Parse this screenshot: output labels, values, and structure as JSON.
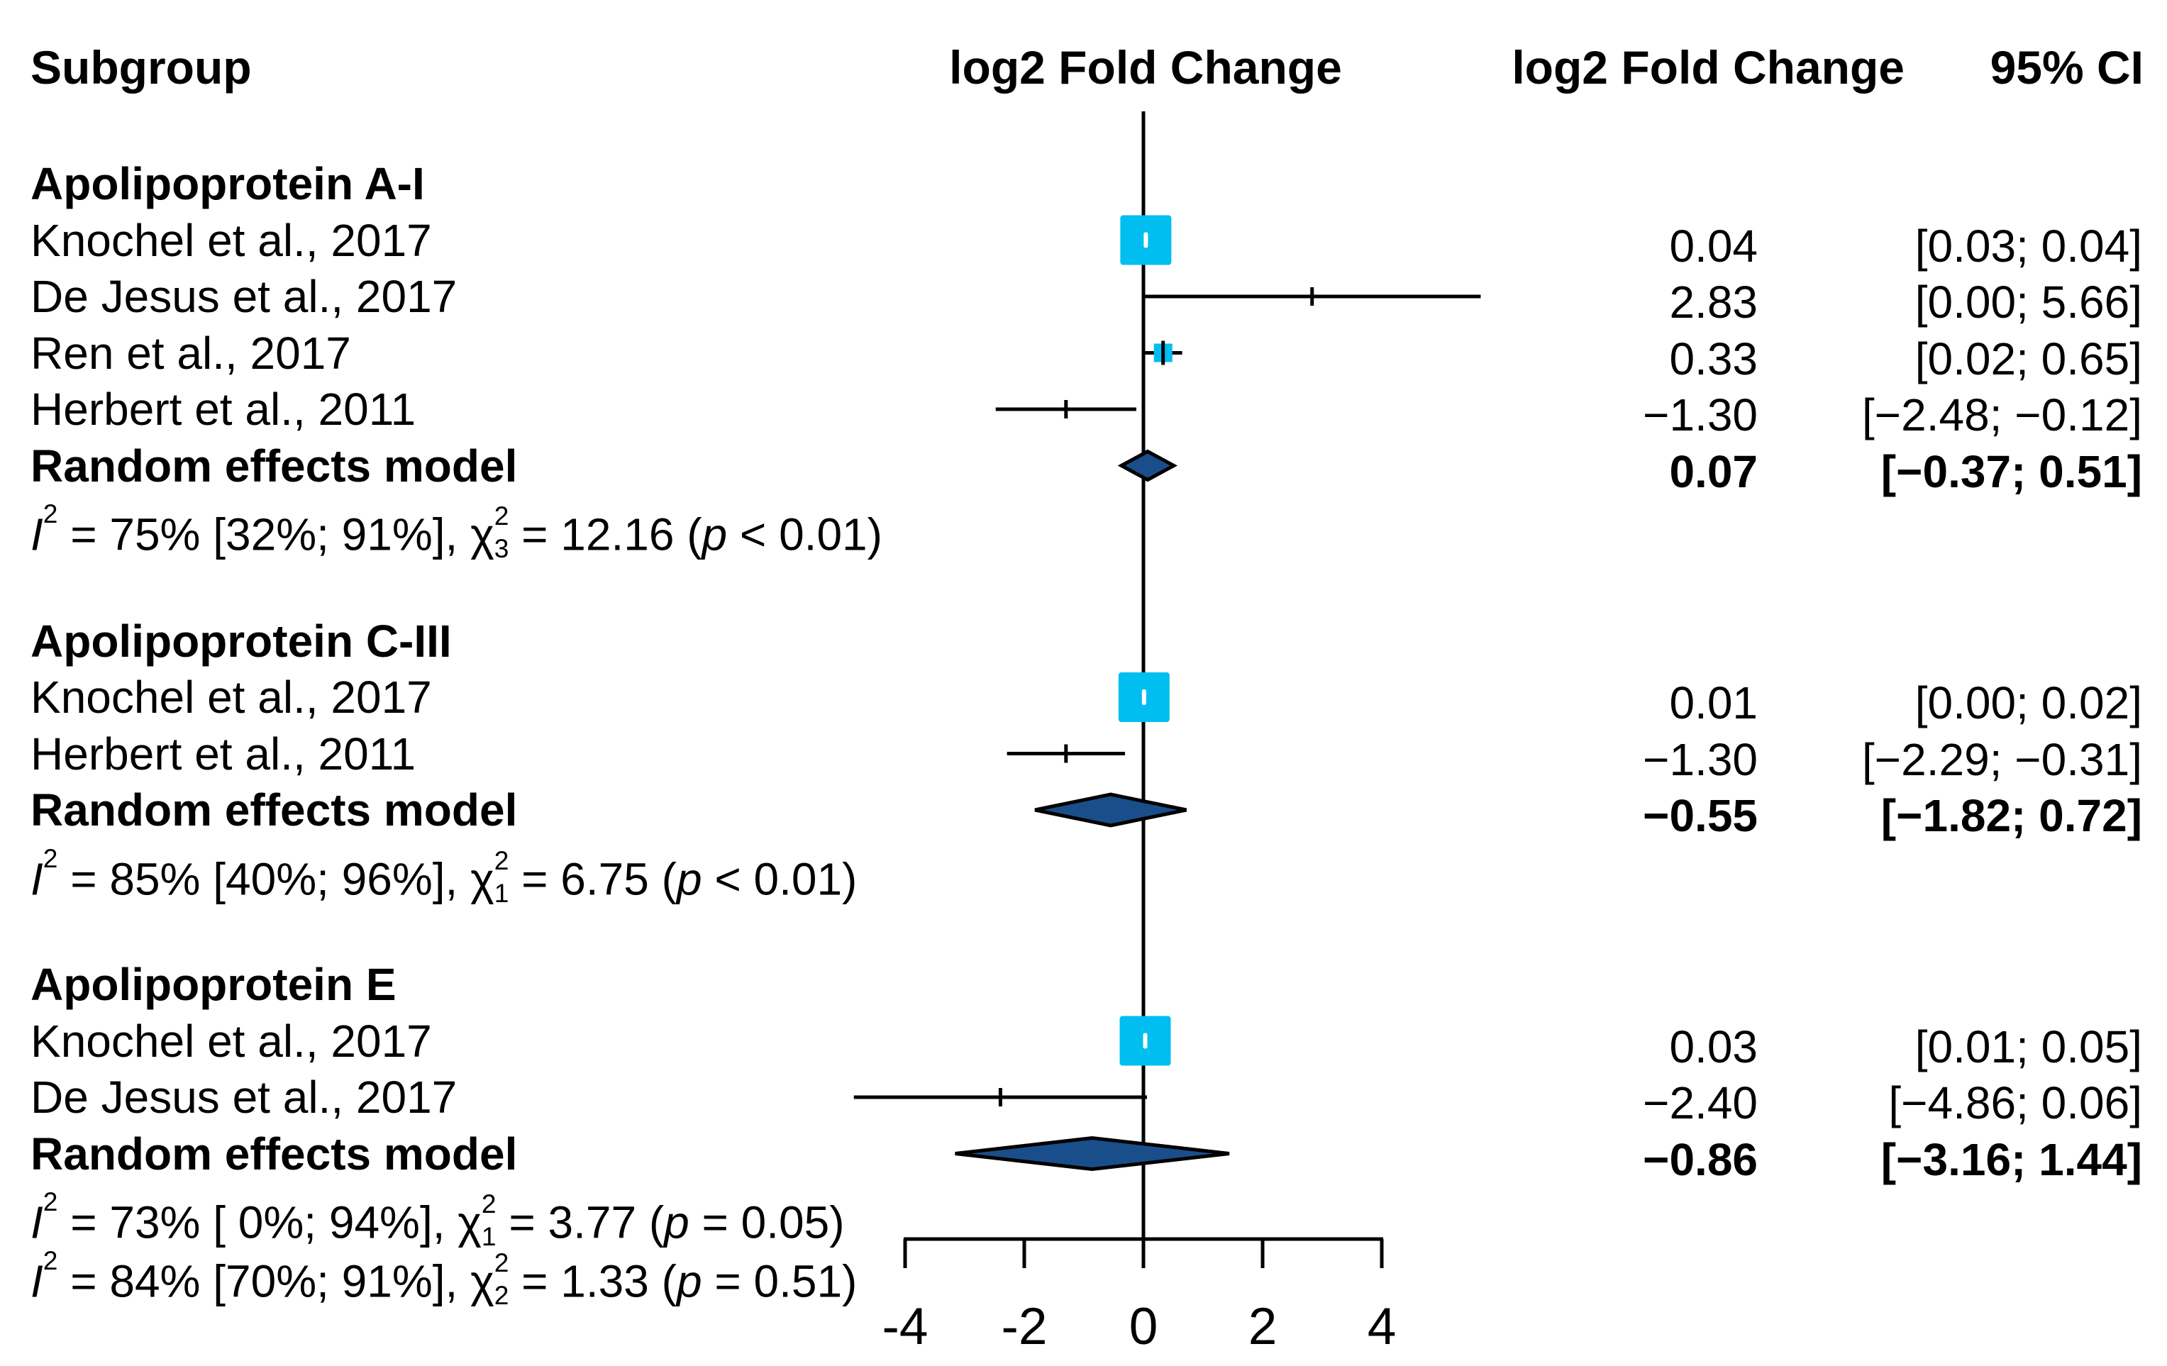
{
  "headers": {
    "subgroup": "Subgroup",
    "plot_title": "log2 Fold Change",
    "value_col": "log2 Fold Change",
    "ci_col": "95% CI"
  },
  "chart_data": {
    "type": "forest",
    "xlabel": "log2 Fold Change",
    "axis_ticks": [
      -4,
      -2,
      0,
      2,
      4
    ],
    "xlim": [
      -4.9,
      5.7
    ],
    "colors": {
      "study_square": "#00BEF0",
      "summary_diamond": "#1A4E8A",
      "line": "#000000"
    },
    "groups": [
      {
        "title": "Apolipoprotein A-I",
        "studies": [
          {
            "label": "Knochel et al., 2017",
            "est": 0.04,
            "lo": 0.03,
            "hi": 0.04,
            "value": "0.04",
            "ci": "[0.03; 0.04]",
            "marker": "big-square"
          },
          {
            "label": "De Jesus et al., 2017",
            "est": 2.83,
            "lo": 0.0,
            "hi": 5.66,
            "value": "2.83",
            "ci": "[0.00; 5.66]",
            "marker": "tick"
          },
          {
            "label": "Ren et al., 2017",
            "est": 0.33,
            "lo": 0.02,
            "hi": 0.65,
            "value": "0.33",
            "ci": "[0.02; 0.65]",
            "marker": "small-square"
          },
          {
            "label": "Herbert et al., 2011",
            "est": -1.3,
            "lo": -2.48,
            "hi": -0.12,
            "value": "−1.30",
            "ci": "[−2.48; −0.12]",
            "marker": "tick"
          }
        ],
        "random": {
          "label": "Random effects model",
          "est": 0.07,
          "lo": -0.37,
          "hi": 0.51,
          "value": "0.07",
          "ci": "[−0.37; 0.51]"
        },
        "het_lines": [
          {
            "i2": "75%",
            "i2_ci": "[32%; 91%]",
            "df": "3",
            "chi2": "12.16",
            "p_rest": " < 0.01"
          }
        ]
      },
      {
        "title": "Apolipoprotein C-III",
        "studies": [
          {
            "label": "Knochel et al., 2017",
            "est": 0.01,
            "lo": 0.0,
            "hi": 0.02,
            "value": "0.01",
            "ci": "[0.00; 0.02]",
            "marker": "big-square"
          },
          {
            "label": "Herbert et al., 2011",
            "est": -1.3,
            "lo": -2.29,
            "hi": -0.31,
            "value": "−1.30",
            "ci": "[−2.29; −0.31]",
            "marker": "tick"
          }
        ],
        "random": {
          "label": "Random effects model",
          "est": -0.55,
          "lo": -1.82,
          "hi": 0.72,
          "value": "−0.55",
          "ci": "[−1.82; 0.72]"
        },
        "het_lines": [
          {
            "i2": "85%",
            "i2_ci": "[40%; 96%]",
            "df": "1",
            "chi2": "6.75",
            "p_rest": " < 0.01"
          }
        ]
      },
      {
        "title": "Apolipoprotein E",
        "studies": [
          {
            "label": "Knochel et al., 2017",
            "est": 0.03,
            "lo": 0.01,
            "hi": 0.05,
            "value": "0.03",
            "ci": "[0.01; 0.05]",
            "marker": "big-square"
          },
          {
            "label": "De Jesus et al., 2017",
            "est": -2.4,
            "lo": -4.86,
            "hi": 0.06,
            "value": "−2.40",
            "ci": "[−4.86; 0.06]",
            "marker": "tick"
          }
        ],
        "random": {
          "label": "Random effects model",
          "est": -0.86,
          "lo": -3.16,
          "hi": 1.44,
          "value": "−0.86",
          "ci": "[−3.16; 1.44]"
        },
        "het_lines": [
          {
            "i2": "73%",
            "i2_ci": "[ 0%; 94%]",
            "df": "1",
            "chi2": "3.77",
            "p_rest": " = 0.05"
          },
          {
            "i2": "84%",
            "i2_ci": "[70%; 91%]",
            "df": "2",
            "chi2": "1.33",
            "p_rest": " = 0.51"
          }
        ]
      }
    ]
  }
}
